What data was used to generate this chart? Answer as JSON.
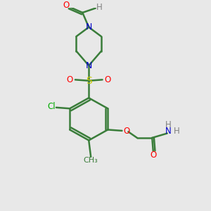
{
  "bg_color": "#e8e8e8",
  "bond_color": "#3a7d3a",
  "bond_width": 1.8,
  "colors": {
    "O": "#ff0000",
    "N": "#0000cc",
    "S": "#cccc00",
    "Cl": "#00aa00",
    "C": "#3a7d3a",
    "H": "#7a9a7a",
    "text_H": "#808080"
  },
  "scale": 1.0
}
